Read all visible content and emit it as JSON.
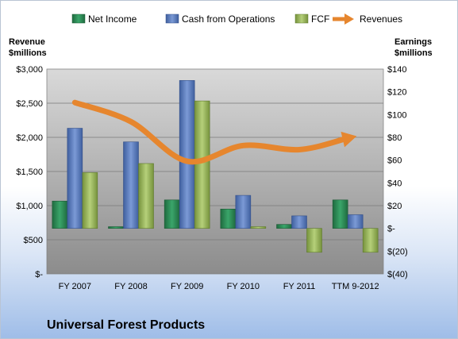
{
  "chart_data": {
    "type": "bar",
    "title": "Universal Forest Products",
    "categories": [
      "FY 2007",
      "FY 2008",
      "FY 2009",
      "FY 2010",
      "FY 2011",
      "TTM 9-2012"
    ],
    "left_axis": {
      "title_line1": "Revenue",
      "title_line2": "$millions",
      "ylim": [
        0,
        3000
      ],
      "ticks": [
        {
          "value": 0,
          "label": "$-"
        },
        {
          "value": 500,
          "label": "$500"
        },
        {
          "value": 1000,
          "label": "$1,000"
        },
        {
          "value": 1500,
          "label": "$1,500"
        },
        {
          "value": 2000,
          "label": "$2,000"
        },
        {
          "value": 2500,
          "label": "$2,500"
        },
        {
          "value": 3000,
          "label": "$3,000"
        }
      ]
    },
    "right_axis": {
      "title_line1": "Earnings",
      "title_line2": "$millions",
      "ylim": [
        -40,
        140
      ],
      "ticks": [
        {
          "value": -40,
          "label": "$(40)"
        },
        {
          "value": -20,
          "label": "$(20)"
        },
        {
          "value": 0,
          "label": "$-"
        },
        {
          "value": 20,
          "label": "$20"
        },
        {
          "value": 40,
          "label": "$40"
        },
        {
          "value": 60,
          "label": "$60"
        },
        {
          "value": 80,
          "label": "$80"
        },
        {
          "value": 100,
          "label": "$100"
        },
        {
          "value": 120,
          "label": "$120"
        },
        {
          "value": 140,
          "label": "$140"
        }
      ]
    },
    "series": [
      {
        "name": "Net Income",
        "kind": "bar",
        "axis": "right",
        "color": "#2e8b57",
        "values": [
          24,
          1.5,
          25,
          17,
          3.5,
          25
        ]
      },
      {
        "name": "Cash from Operations",
        "kind": "bar",
        "axis": "right",
        "color": "#5a7fc2",
        "values": [
          88,
          76,
          130,
          29,
          11,
          12
        ]
      },
      {
        "name": "FCF",
        "kind": "bar",
        "axis": "right",
        "color": "#9bbb59",
        "values": [
          49,
          57,
          112,
          1.5,
          -21,
          -21
        ]
      },
      {
        "name": "Revenues",
        "kind": "line",
        "axis": "left",
        "color": "#e6862e",
        "values": [
          2510,
          2230,
          1650,
          1880,
          1820,
          1980
        ]
      }
    ],
    "legend_position": "top",
    "grid": true
  }
}
